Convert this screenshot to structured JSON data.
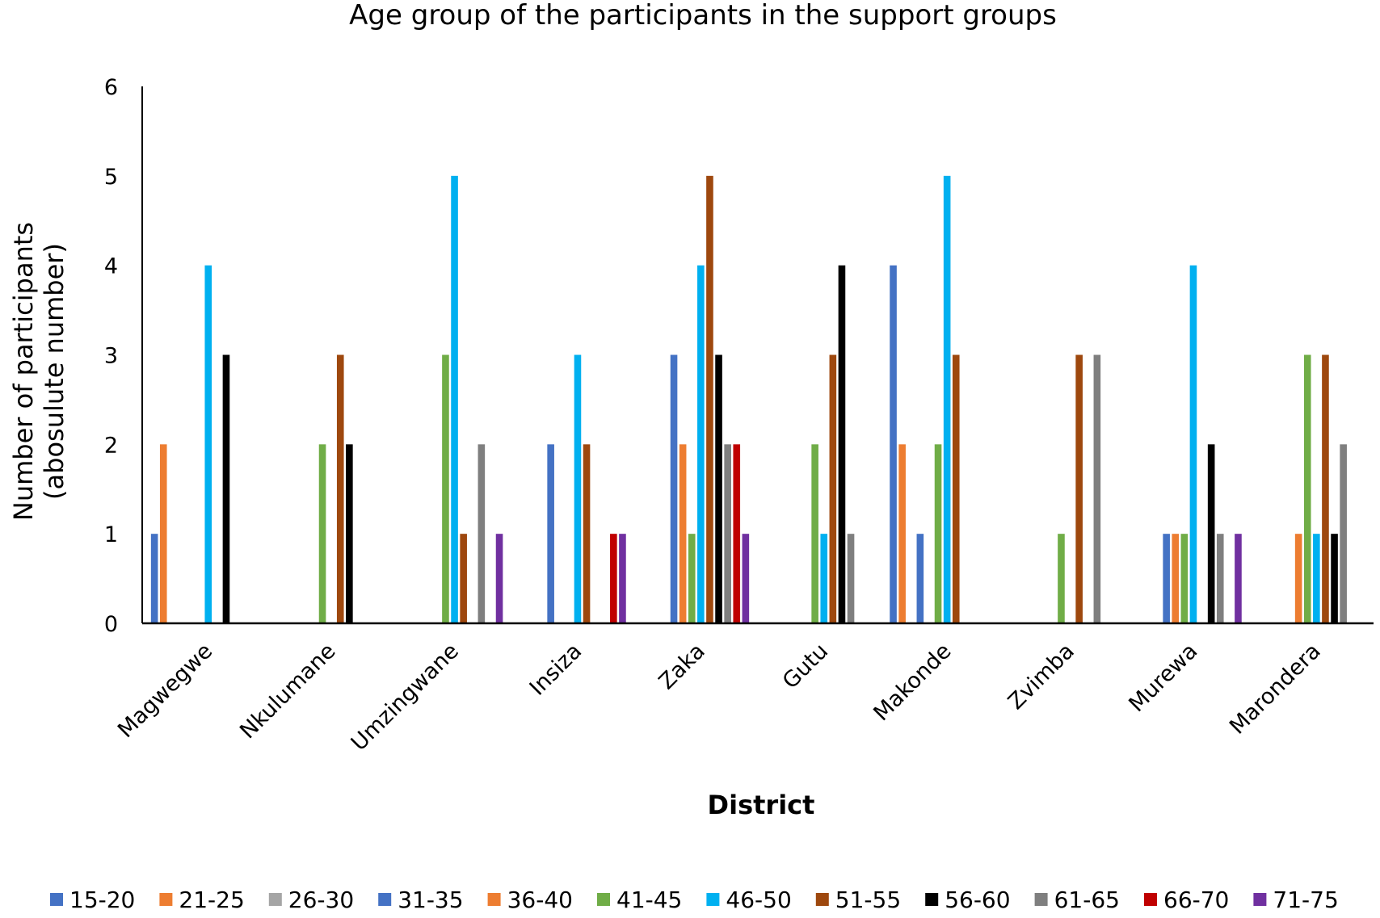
{
  "chart_data": {
    "type": "bar",
    "title": "Age group of the participants in the support groups",
    "xlabel": "District",
    "ylabel": [
      "Number of participants",
      "(abosulute number)"
    ],
    "ylim": [
      0,
      6
    ],
    "yticks": [
      "0",
      "1",
      "2",
      "3",
      "4",
      "5",
      "6"
    ],
    "grid": false,
    "legend_position": "bottom",
    "categories": [
      "Magwegwe",
      "Nkulumane",
      "Umzingwane",
      "Insiza",
      "Zaka",
      "Gutu",
      "Makonde",
      "Zvimba",
      "Murewa",
      "Marondera"
    ],
    "series": [
      {
        "name": "15-20",
        "color": "#4472C4",
        "values": [
          1,
          0,
          0,
          0,
          0,
          0,
          4,
          0,
          0,
          0
        ]
      },
      {
        "name": "21-25",
        "color": "#ED7D31",
        "values": [
          2,
          0,
          0,
          0,
          0,
          0,
          2,
          0,
          0,
          0
        ]
      },
      {
        "name": "26-30",
        "color": "#A5A5A5",
        "values": [
          0,
          0,
          0,
          0,
          0,
          0,
          0,
          0,
          0,
          0
        ]
      },
      {
        "name": "31-35",
        "color": "#4472C4",
        "values": [
          0,
          0,
          0,
          2,
          3,
          0,
          1,
          0,
          1,
          0
        ]
      },
      {
        "name": "36-40",
        "color": "#ED7D31",
        "values": [
          0,
          0,
          0,
          0,
          2,
          0,
          0,
          0,
          1,
          1
        ]
      },
      {
        "name": "41-45",
        "color": "#70AD47",
        "values": [
          0,
          2,
          3,
          0,
          1,
          2,
          2,
          1,
          1,
          3
        ]
      },
      {
        "name": "46-50",
        "color": "#00B0F0",
        "values": [
          4,
          0,
          5,
          3,
          4,
          1,
          5,
          0,
          4,
          1
        ]
      },
      {
        "name": "51-55",
        "color": "#9E480E",
        "values": [
          0,
          3,
          1,
          2,
          5,
          3,
          3,
          3,
          0,
          3
        ]
      },
      {
        "name": "56-60",
        "color": "#000000",
        "values": [
          3,
          2,
          0,
          0,
          3,
          4,
          0,
          0,
          2,
          1
        ]
      },
      {
        "name": "61-65",
        "color": "#7F7F7F",
        "values": [
          0,
          0,
          2,
          0,
          2,
          1,
          0,
          3,
          1,
          2
        ]
      },
      {
        "name": "66-70",
        "color": "#C00000",
        "values": [
          0,
          0,
          0,
          1,
          2,
          0,
          0,
          0,
          0,
          0
        ]
      },
      {
        "name": "71-75",
        "color": "#7030A0",
        "values": [
          0,
          0,
          1,
          1,
          1,
          0,
          0,
          0,
          1,
          0
        ]
      }
    ]
  }
}
